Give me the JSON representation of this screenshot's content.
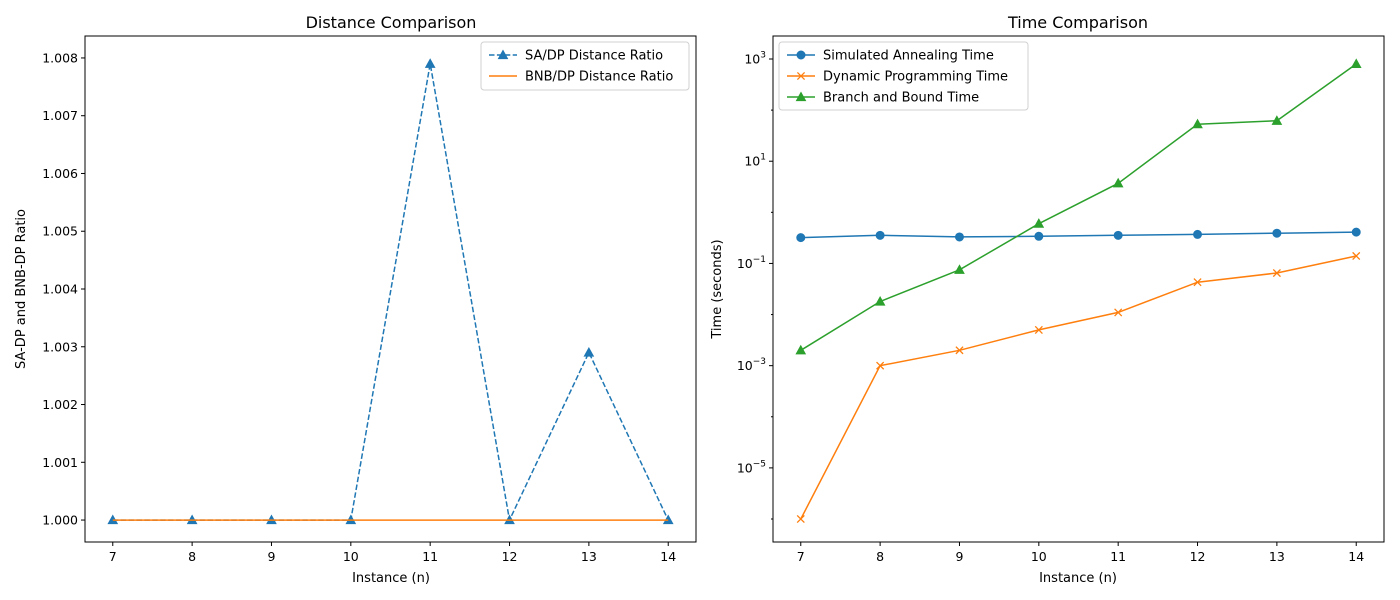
{
  "chart_data": [
    {
      "type": "line",
      "title": "Distance Comparison",
      "xlabel": "Instance (n)",
      "ylabel": "SA-DP and BNB-DP Ratio",
      "x": [
        7,
        8,
        9,
        10,
        11,
        12,
        13,
        14
      ],
      "xlim": [
        6.65,
        14.35
      ],
      "ylim": [
        0.99962,
        1.00838
      ],
      "yscale": "linear",
      "xticks": [
        7,
        8,
        9,
        10,
        11,
        12,
        13,
        14
      ],
      "yticks": [
        1.0,
        1.001,
        1.002,
        1.003,
        1.004,
        1.005,
        1.006,
        1.007,
        1.008
      ],
      "ytick_labels": [
        "1.000",
        "1.001",
        "1.002",
        "1.003",
        "1.004",
        "1.005",
        "1.006",
        "1.007",
        "1.008"
      ],
      "grid": false,
      "legend": "top-right",
      "series": [
        {
          "name": "SA/DP Distance Ratio",
          "values": [
            1.0,
            1.0,
            1.0,
            1.0,
            1.0079,
            1.0,
            1.0029,
            1.0
          ],
          "color": "#1f77b4",
          "dash": "dashed",
          "marker": "triangle"
        },
        {
          "name": "BNB/DP Distance Ratio",
          "values": [
            1.0,
            1.0,
            1.0,
            1.0,
            1.0,
            1.0,
            1.0,
            1.0
          ],
          "color": "#ff7f0e",
          "dash": "solid",
          "marker": "none"
        }
      ]
    },
    {
      "type": "line",
      "title": "Time Comparison",
      "xlabel": "Instance (n)",
      "ylabel": "Time (seconds)",
      "x": [
        7,
        8,
        9,
        10,
        11,
        12,
        13,
        14
      ],
      "xlim": [
        6.65,
        14.35
      ],
      "ylim": [
        -6.45,
        3.45
      ],
      "yscale": "log",
      "xticks": [
        7,
        8,
        9,
        10,
        11,
        12,
        13,
        14
      ],
      "yticks": [
        -5,
        -3,
        -1,
        1,
        3
      ],
      "grid": false,
      "legend": "top-left",
      "series": [
        {
          "name": "Simulated Annealing Time",
          "values": [
            0.32,
            0.355,
            0.33,
            0.34,
            0.355,
            0.37,
            0.39,
            0.41
          ],
          "color": "#1f77b4",
          "dash": "solid",
          "marker": "circle"
        },
        {
          "name": "Dynamic Programming Time",
          "values": [
            1e-06,
            0.001,
            0.002,
            0.005,
            0.011,
            0.043,
            0.065,
            0.14
          ],
          "color": "#ff7f0e",
          "dash": "solid",
          "marker": "x"
        },
        {
          "name": "Branch and Bound Time",
          "values": [
            0.002,
            0.018,
            0.075,
            0.6,
            3.7,
            53,
            62,
            800
          ],
          "color": "#2ca02c",
          "dash": "solid",
          "marker": "triangle"
        }
      ]
    }
  ]
}
